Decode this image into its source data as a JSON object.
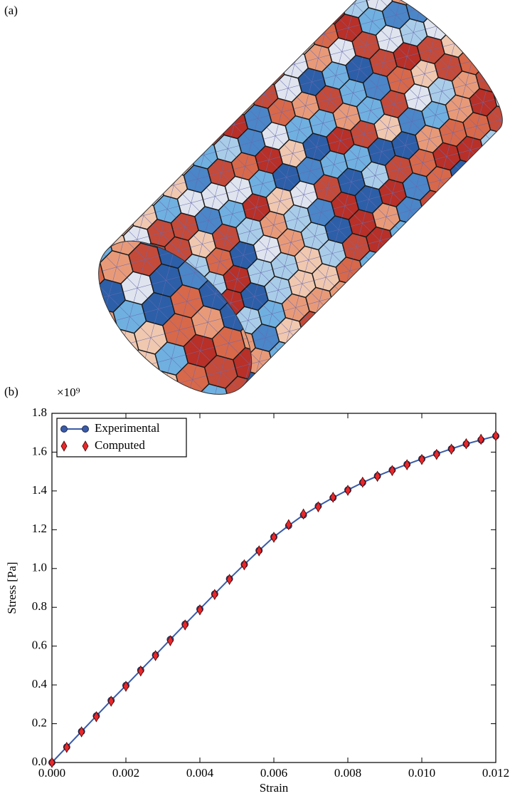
{
  "panel_a_label": "(a)",
  "chart_data": {
    "type": "line",
    "panel_label": "(b)",
    "y_multiplier": "×10⁹",
    "x_label": "Strain",
    "y_label": "Stress [Pa]",
    "x": [
      0,
      0.0004,
      0.0008,
      0.0012,
      0.0016,
      0.002,
      0.0024,
      0.0028,
      0.0032,
      0.0036,
      0.004,
      0.0044,
      0.0048,
      0.0052,
      0.0056,
      0.006,
      0.0064,
      0.0068,
      0.0072,
      0.0076,
      0.008,
      0.0084,
      0.0088,
      0.0092,
      0.0096,
      0.01,
      0.0104,
      0.0108,
      0.0112,
      0.0116,
      0.012
    ],
    "series": [
      {
        "name": "Experimental",
        "color": "#3a5ba8",
        "marker": "circle",
        "values": [
          0,
          0.08,
          0.16,
          0.24,
          0.32,
          0.397,
          0.476,
          0.554,
          0.634,
          0.713,
          0.791,
          0.869,
          0.947,
          1.021,
          1.093,
          1.163,
          1.221,
          1.276,
          1.322,
          1.365,
          1.405,
          1.443,
          1.477,
          1.508,
          1.537,
          1.565,
          1.591,
          1.617,
          1.642,
          1.663,
          1.683
        ]
      },
      {
        "name": "Computed",
        "color": "#e8282b",
        "marker": "diamond",
        "values": [
          0,
          0.078,
          0.158,
          0.236,
          0.316,
          0.393,
          0.472,
          0.551,
          0.628,
          0.709,
          0.787,
          0.866,
          0.944,
          1.019,
          1.091,
          1.161,
          1.226,
          1.281,
          1.318,
          1.367,
          1.403,
          1.445,
          1.475,
          1.505,
          1.535,
          1.562,
          1.588,
          1.615,
          1.643,
          1.666,
          1.684
        ]
      }
    ],
    "xlim": [
      0,
      0.012
    ],
    "ylim": [
      0,
      1.8
    ],
    "xticks": [
      {
        "value": 0,
        "label": "0.000"
      },
      0.002,
      0.004,
      0.006,
      0.008,
      {
        "value": 0.01,
        "label": "0.010"
      },
      0.012
    ],
    "yticks": [
      {
        "value": 0,
        "label": "0.0"
      },
      0.2,
      0.4,
      0.6,
      0.8,
      {
        "value": 1,
        "label": "1.0"
      },
      1.2,
      1.4,
      1.6,
      1.8
    ],
    "legend": "upper left",
    "grid": false
  }
}
